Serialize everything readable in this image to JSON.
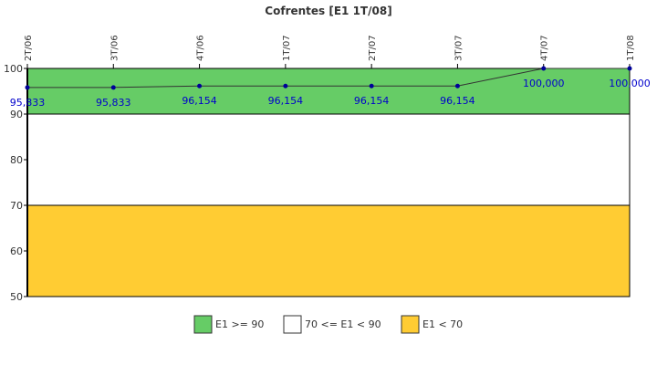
{
  "chart_data": {
    "type": "line",
    "title": "Cofrentes [E1 1T/08]",
    "categories": [
      "2T/06",
      "3T/06",
      "4T/06",
      "1T/07",
      "2T/07",
      "3T/07",
      "4T/07",
      "1T/08"
    ],
    "series": [
      {
        "values": [
          95.833,
          95.833,
          96.154,
          96.154,
          96.154,
          96.154,
          100.0,
          100.0
        ],
        "labels": [
          "95,833",
          "95,833",
          "96,154",
          "96,154",
          "96,154",
          "96,154",
          "100,000",
          "100,000"
        ],
        "color": "#000099"
      }
    ],
    "ylim": [
      50,
      100
    ],
    "yticks": [
      "50",
      "60",
      "70",
      "80",
      "90",
      "100"
    ],
    "bands": [
      {
        "from": 90,
        "to": 100,
        "color": "#66cc66"
      },
      {
        "from": 70,
        "to": 90,
        "color": "#ffffff"
      },
      {
        "from": 50,
        "to": 70,
        "color": "#ffcc33"
      }
    ],
    "legend": {
      "position": "bottom",
      "items": [
        {
          "label": "E1 >= 90",
          "color": "#66cc66"
        },
        {
          "label": "70 <= E1 < 90",
          "color": "#ffffff"
        },
        {
          "label": "E1 < 70",
          "color": "#ffcc33"
        }
      ]
    }
  }
}
